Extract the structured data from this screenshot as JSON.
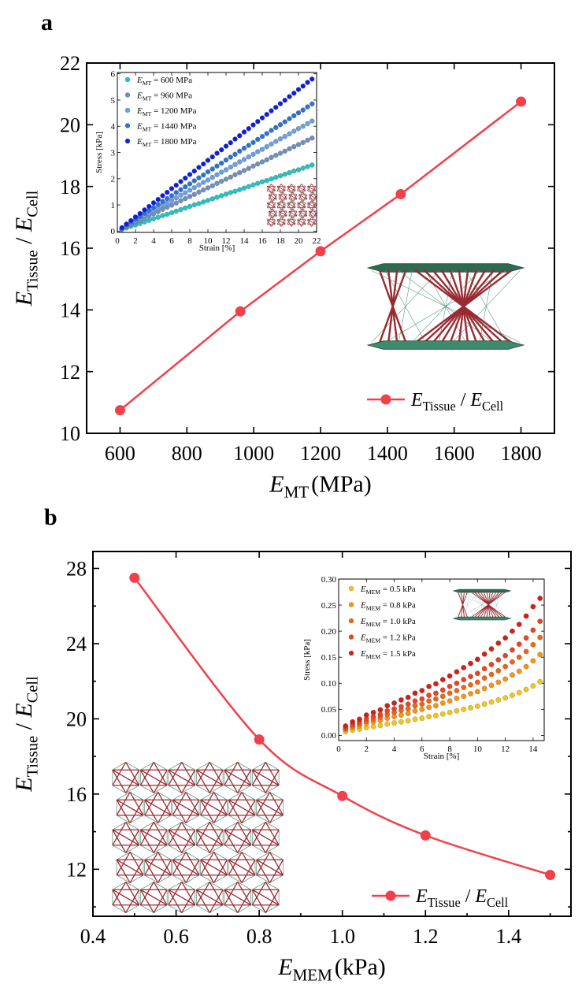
{
  "panels": [
    {
      "label": "a",
      "chart_data": {
        "type": "line",
        "x": [
          600,
          960,
          1200,
          1440,
          1800
        ],
        "series": [
          {
            "name": "E_Tissue / E_Cell",
            "values": [
              10.75,
              13.95,
              15.9,
              17.75,
              20.75
            ]
          }
        ],
        "xlabel": {
          "main": "E",
          "sub": "MT",
          "unit": "(MPa)"
        },
        "ylabel": {
          "main": "E",
          "sub": "Tissue",
          "sep": " / ",
          "main2": "E",
          "sub2": "Cell"
        },
        "legend": {
          "main": "E",
          "sub": "Tissue",
          "sep": " / ",
          "main2": "E",
          "sub2": "Cell",
          "placement": "bottom-right"
        },
        "xlim": [
          500,
          1900
        ],
        "ylim": [
          10,
          22
        ],
        "xticks": [
          600,
          800,
          1000,
          1200,
          1400,
          1600,
          1800
        ],
        "yticks": [
          10,
          12,
          14,
          16,
          18,
          20,
          22
        ],
        "color": "#f0404a",
        "smooth": false
      },
      "inset": {
        "type": "scatter",
        "xlabel": "Strain [%]",
        "ylabel": "Stress [kPa]",
        "xlim": [
          0,
          22
        ],
        "ylim": [
          -0.05,
          6.05
        ],
        "xticks": [
          0,
          2,
          4,
          6,
          8,
          10,
          12,
          14,
          16,
          18,
          20,
          22
        ],
        "yticks": [
          0,
          1,
          2,
          3,
          4,
          5,
          6
        ],
        "x": [
          0.5,
          1,
          1.5,
          2,
          2.5,
          3,
          3.5,
          4,
          4.5,
          5,
          5.5,
          6,
          6.5,
          7,
          7.5,
          8,
          8.5,
          9,
          9.5,
          10,
          10.5,
          11,
          11.5,
          12,
          12.5,
          13,
          13.5,
          14,
          14.5,
          15,
          15.5,
          16,
          16.5,
          17,
          17.5,
          18,
          18.5,
          19,
          19.5,
          20,
          20.5,
          21,
          21.5
        ],
        "legend_placement": "top-left",
        "series": [
          {
            "sym": "E",
            "sub": "MT",
            "rest": " = 600 MPa",
            "color": "#22c4c4",
            "values": [
              0.06,
              0.12,
              0.18,
              0.23,
              0.29,
              0.35,
              0.41,
              0.47,
              0.53,
              0.59,
              0.64,
              0.7,
              0.76,
              0.82,
              0.88,
              0.94,
              1.0,
              1.05,
              1.11,
              1.17,
              1.23,
              1.29,
              1.35,
              1.41,
              1.47,
              1.52,
              1.58,
              1.64,
              1.7,
              1.76,
              1.82,
              1.88,
              1.93,
              1.99,
              2.05,
              2.11,
              2.17,
              2.23,
              2.29,
              2.34,
              2.4,
              2.46,
              2.52
            ]
          },
          {
            "sym": "E",
            "sub": "MT",
            "rest": " = 960 MPa",
            "color": "#6f90bf",
            "values": [
              0.08,
              0.17,
              0.25,
              0.33,
              0.41,
              0.5,
              0.58,
              0.66,
              0.74,
              0.83,
              0.91,
              0.99,
              1.07,
              1.16,
              1.24,
              1.32,
              1.4,
              1.49,
              1.57,
              1.65,
              1.73,
              1.82,
              1.9,
              1.98,
              2.06,
              2.15,
              2.23,
              2.31,
              2.39,
              2.48,
              2.56,
              2.64,
              2.72,
              2.81,
              2.89,
              2.97,
              3.05,
              3.14,
              3.22,
              3.3,
              3.38,
              3.47,
              3.55
            ]
          },
          {
            "sym": "E",
            "sub": "MT",
            "rest": " = 1200 MPa",
            "color": "#6a9ee6",
            "values": [
              0.1,
              0.2,
              0.29,
              0.39,
              0.49,
              0.59,
              0.68,
              0.78,
              0.88,
              0.98,
              1.07,
              1.17,
              1.27,
              1.37,
              1.46,
              1.56,
              1.66,
              1.76,
              1.86,
              1.95,
              2.05,
              2.15,
              2.25,
              2.34,
              2.44,
              2.54,
              2.64,
              2.73,
              2.83,
              2.93,
              3.03,
              3.12,
              3.22,
              3.32,
              3.42,
              3.52,
              3.61,
              3.71,
              3.81,
              3.91,
              4.0,
              4.1,
              4.2
            ]
          },
          {
            "sym": "E",
            "sub": "MT",
            "rest": " = 1440 MPa",
            "color": "#2a72d8",
            "values": [
              0.11,
              0.23,
              0.34,
              0.45,
              0.56,
              0.68,
              0.79,
              0.9,
              1.02,
              1.13,
              1.24,
              1.35,
              1.47,
              1.58,
              1.69,
              1.8,
              1.92,
              2.03,
              2.14,
              2.26,
              2.37,
              2.48,
              2.59,
              2.71,
              2.82,
              2.93,
              3.05,
              3.16,
              3.27,
              3.38,
              3.5,
              3.61,
              3.72,
              3.84,
              3.95,
              4.06,
              4.17,
              4.29,
              4.4,
              4.51,
              4.62,
              4.74,
              4.85
            ]
          },
          {
            "sym": "E",
            "sub": "MT",
            "rest": " = 1800 MPa",
            "color": "#0a1ee6",
            "values": [
              0.13,
              0.27,
              0.4,
              0.54,
              0.67,
              0.81,
              0.94,
              1.08,
              1.21,
              1.35,
              1.48,
              1.62,
              1.75,
              1.89,
              2.02,
              2.16,
              2.29,
              2.43,
              2.56,
              2.7,
              2.83,
              2.97,
              3.1,
              3.24,
              3.37,
              3.51,
              3.64,
              3.78,
              3.91,
              4.05,
              4.18,
              4.32,
              4.45,
              4.59,
              4.72,
              4.86,
              4.99,
              5.13,
              5.26,
              5.4,
              5.53,
              5.67,
              5.8
            ]
          }
        ]
      }
    },
    {
      "label": "b",
      "chart_data": {
        "type": "line",
        "x": [
          0.5,
          0.8,
          1.0,
          1.2,
          1.5
        ],
        "series": [
          {
            "name": "E_Tissue / E_Cell",
            "values": [
              27.5,
              18.9,
              15.9,
              13.8,
              11.7
            ]
          }
        ],
        "xlabel": {
          "main": "E",
          "sub": "MEM",
          "unit": "(kPa)"
        },
        "ylabel": {
          "main": "E",
          "sub": "Tissue",
          "sep": " / ",
          "main2": "E",
          "sub2": "Cell"
        },
        "legend": {
          "main": "E",
          "sub": "Tissue",
          "sep": " / ",
          "main2": "E",
          "sub2": "Cell",
          "placement": "bottom-right"
        },
        "xlim": [
          0.4,
          1.55
        ],
        "ylim": [
          9.5,
          28.9
        ],
        "xticks": [
          0.4,
          0.6,
          0.8,
          1.0,
          1.2,
          1.4
        ],
        "yticks": [
          12,
          16,
          20,
          24,
          28
        ],
        "color": "#f0404a",
        "smooth": true
      },
      "inset": {
        "type": "scatter",
        "xlabel": "Strain [%]",
        "ylabel": "Stress [kPa]",
        "xlim": [
          0,
          14.8
        ],
        "ylim": [
          -0.01,
          0.3
        ],
        "xticks": [
          0,
          2,
          4,
          6,
          8,
          10,
          12,
          14
        ],
        "yticks": [
          0.0,
          0.05,
          0.1,
          0.15,
          0.2,
          0.25,
          0.3
        ],
        "x": [
          0.5,
          1,
          1.5,
          2,
          2.5,
          3,
          3.5,
          4,
          4.5,
          5,
          5.5,
          6,
          6.5,
          7,
          7.5,
          8,
          8.5,
          9,
          9.5,
          10,
          10.5,
          11,
          11.5,
          12,
          12.5,
          13,
          13.5,
          14,
          14.5
        ],
        "legend_placement": "top-left",
        "series": [
          {
            "sym": "E",
            "sub": "MEM",
            "rest": " = 0.5 kPa",
            "color": "#f8c414",
            "values": [
              0.007,
              0.01,
              0.012,
              0.015,
              0.017,
              0.019,
              0.022,
              0.024,
              0.026,
              0.028,
              0.031,
              0.033,
              0.036,
              0.038,
              0.041,
              0.044,
              0.047,
              0.05,
              0.053,
              0.056,
              0.06,
              0.064,
              0.068,
              0.072,
              0.077,
              0.082,
              0.088,
              0.095,
              0.103
            ]
          },
          {
            "sym": "E",
            "sub": "MEM",
            "rest": " = 0.8 kPa",
            "color": "#f8940e",
            "values": [
              0.011,
              0.015,
              0.018,
              0.023,
              0.026,
              0.029,
              0.033,
              0.036,
              0.039,
              0.042,
              0.047,
              0.05,
              0.054,
              0.057,
              0.062,
              0.066,
              0.071,
              0.075,
              0.08,
              0.084,
              0.09,
              0.096,
              0.102,
              0.108,
              0.116,
              0.123,
              0.132,
              0.143,
              0.155
            ]
          },
          {
            "sym": "E",
            "sub": "MEM",
            "rest": " = 1.0 kPa",
            "color": "#f2640e",
            "values": [
              0.013,
              0.018,
              0.022,
              0.027,
              0.031,
              0.035,
              0.04,
              0.044,
              0.048,
              0.051,
              0.057,
              0.06,
              0.066,
              0.07,
              0.075,
              0.081,
              0.086,
              0.092,
              0.097,
              0.102,
              0.11,
              0.117,
              0.124,
              0.132,
              0.141,
              0.15,
              0.161,
              0.174,
              0.188
            ]
          },
          {
            "sym": "E",
            "sub": "MEM",
            "rest": " = 1.2 kPa",
            "color": "#ec4322",
            "values": [
              0.015,
              0.021,
              0.026,
              0.032,
              0.036,
              0.04,
              0.047,
              0.051,
              0.055,
              0.06,
              0.066,
              0.07,
              0.077,
              0.081,
              0.087,
              0.094,
              0.1,
              0.107,
              0.113,
              0.119,
              0.128,
              0.136,
              0.145,
              0.153,
              0.164,
              0.175,
              0.187,
              0.202,
              0.219
            ]
          },
          {
            "sym": "E",
            "sub": "MEM",
            "rest": " = 1.5 kPa",
            "color": "#d81e12",
            "values": [
              0.018,
              0.026,
              0.031,
              0.039,
              0.044,
              0.049,
              0.057,
              0.062,
              0.068,
              0.073,
              0.081,
              0.086,
              0.094,
              0.099,
              0.107,
              0.114,
              0.122,
              0.13,
              0.138,
              0.146,
              0.156,
              0.166,
              0.177,
              0.187,
              0.2,
              0.213,
              0.229,
              0.247,
              0.263
            ]
          }
        ]
      }
    }
  ],
  "colors": {
    "strut": "#9a2a32",
    "plate": "#3d8a6c",
    "plate_dark": "#2e6a52"
  }
}
